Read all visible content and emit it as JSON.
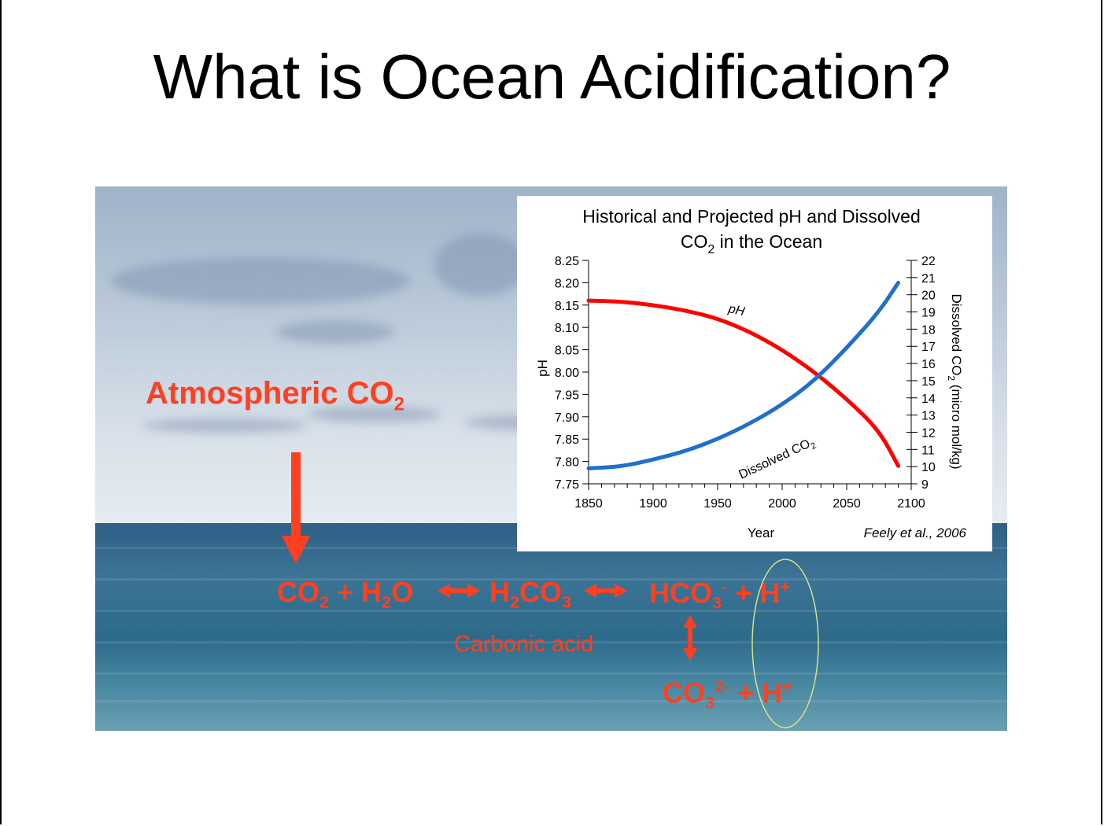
{
  "slide": {
    "title": "What is Ocean Acidification?"
  },
  "annotations": {
    "atmospheric": "Atmospheric CO",
    "atmospheric_sub": "2",
    "equation1": {
      "co2": "CO",
      "co2_sub": "2",
      "plus1": " + ",
      "h2o_h": "H",
      "h2o_sub": "2",
      "h2o_o": "O"
    },
    "equation2": {
      "h": "H",
      "h_sub": "2",
      "co": "CO",
      "co_sub": "3"
    },
    "equation3": {
      "hco": "HCO",
      "hco_sub": "3",
      "hco_sup": "-",
      "plus": " + ",
      "h": "H",
      "h_sup": "+"
    },
    "equation4": {
      "co": "CO",
      "co_sub": "3",
      "co_sup": "2-",
      "plus": " + ",
      "h": "H",
      "h_sup": "+"
    },
    "carbonic_acid": "Carbonic acid"
  },
  "colors": {
    "accent": "#ff4020",
    "ph_line": "#ff0000",
    "co2_line": "#1f6fce",
    "ellipse": "#d6e08a"
  },
  "chart_data": {
    "type": "line",
    "title_line1": "Historical and Projected pH and Dissolved",
    "title_line2": "CO",
    "title_line2_sub": "2",
    "title_line2_end": " in the Ocean",
    "xlabel": "Year",
    "ylabel_left": "pH",
    "ylabel_right": "Dissolved CO",
    "ylabel_right_sub": "2",
    "ylabel_right_end": " (micro mol/kg)",
    "source": "Feely et al., 2006",
    "xlim": [
      1850,
      2100
    ],
    "x_ticks": [
      "1850",
      "1900",
      "1950",
      "2000",
      "2050",
      "2100"
    ],
    "ylim_left": [
      7.75,
      8.25
    ],
    "y_ticks_left": [
      "8.25",
      "8.20",
      "8.15",
      "8.10",
      "8.05",
      "8.00",
      "7.95",
      "7.90",
      "7.85",
      "7.80",
      "7.75"
    ],
    "ylim_right": [
      9,
      22
    ],
    "y_ticks_right": [
      "22",
      "21",
      "20",
      "19",
      "18",
      "17",
      "16",
      "15",
      "14",
      "13",
      "12",
      "11",
      "10",
      "9"
    ],
    "series": [
      {
        "name": "pH",
        "axis": "left",
        "x": [
          1850,
          1875,
          1900,
          1925,
          1950,
          1975,
          2000,
          2025,
          2050,
          2075,
          2090
        ],
        "values": [
          8.16,
          8.158,
          8.15,
          8.138,
          8.12,
          8.09,
          8.05,
          8.0,
          7.94,
          7.87,
          7.79
        ]
      },
      {
        "name": "Dissolved CO2",
        "axis": "right",
        "x": [
          1850,
          1875,
          1900,
          1925,
          1950,
          1975,
          2000,
          2025,
          2050,
          2075,
          2090
        ],
        "values": [
          9.9,
          10.0,
          10.4,
          10.9,
          11.6,
          12.5,
          13.6,
          15.0,
          16.9,
          19.0,
          20.7
        ]
      }
    ],
    "series_labels": {
      "ph": "pH",
      "co2": "Dissolved CO",
      "co2_sub": "2"
    }
  }
}
